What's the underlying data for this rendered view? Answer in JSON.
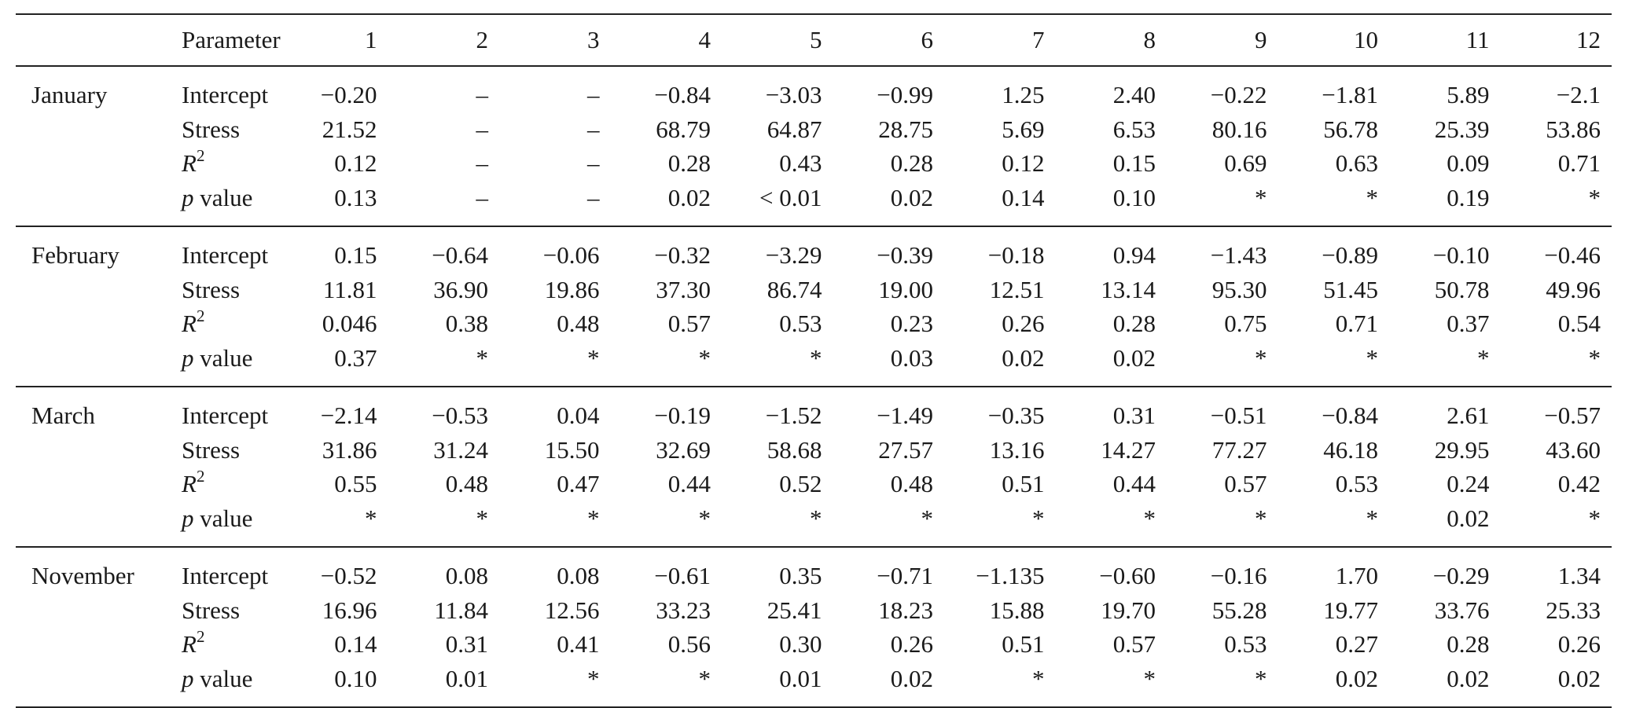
{
  "header": {
    "parameter_label": "Parameter",
    "columns": [
      "1",
      "2",
      "3",
      "4",
      "5",
      "6",
      "7",
      "8",
      "9",
      "10",
      "11",
      "12"
    ]
  },
  "parameter_names": {
    "intercept": "Intercept",
    "stress": "Stress",
    "r2_base": "R",
    "r2_exp": "2",
    "p_italic": "p",
    "p_rest": " value"
  },
  "groups": [
    {
      "month": "January",
      "intercept": [
        "−0.20",
        "–",
        "–",
        "−0.84",
        "−3.03",
        "−0.99",
        "1.25",
        "2.40",
        "−0.22",
        "−1.81",
        "5.89",
        "−2.1"
      ],
      "stress": [
        "21.52",
        "–",
        "–",
        "68.79",
        "64.87",
        "28.75",
        "5.69",
        "6.53",
        "80.16",
        "56.78",
        "25.39",
        "53.86"
      ],
      "r2": [
        "0.12",
        "–",
        "–",
        "0.28",
        "0.43",
        "0.28",
        "0.12",
        "0.15",
        "0.69",
        "0.63",
        "0.09",
        "0.71"
      ],
      "p": [
        "0.13",
        "–",
        "–",
        "0.02",
        "< 0.01",
        "0.02",
        "0.14",
        "0.10",
        "*",
        "*",
        "0.19",
        "*"
      ]
    },
    {
      "month": "February",
      "intercept": [
        "0.15",
        "−0.64",
        "−0.06",
        "−0.32",
        "−3.29",
        "−0.39",
        "−0.18",
        "0.94",
        "−1.43",
        "−0.89",
        "−0.10",
        "−0.46"
      ],
      "stress": [
        "11.81",
        "36.90",
        "19.86",
        "37.30",
        "86.74",
        "19.00",
        "12.51",
        "13.14",
        "95.30",
        "51.45",
        "50.78",
        "49.96"
      ],
      "r2": [
        "0.046",
        "0.38",
        "0.48",
        "0.57",
        "0.53",
        "0.23",
        "0.26",
        "0.28",
        "0.75",
        "0.71",
        "0.37",
        "0.54"
      ],
      "p": [
        "0.37",
        "*",
        "*",
        "*",
        "*",
        "0.03",
        "0.02",
        "0.02",
        "*",
        "*",
        "*",
        "*"
      ]
    },
    {
      "month": "March",
      "intercept": [
        "−2.14",
        "−0.53",
        "0.04",
        "−0.19",
        "−1.52",
        "−1.49",
        "−0.35",
        "0.31",
        "−0.51",
        "−0.84",
        "2.61",
        "−0.57"
      ],
      "stress": [
        "31.86",
        "31.24",
        "15.50",
        "32.69",
        "58.68",
        "27.57",
        "13.16",
        "14.27",
        "77.27",
        "46.18",
        "29.95",
        "43.60"
      ],
      "r2": [
        "0.55",
        "0.48",
        "0.47",
        "0.44",
        "0.52",
        "0.48",
        "0.51",
        "0.44",
        "0.57",
        "0.53",
        "0.24",
        "0.42"
      ],
      "p": [
        "*",
        "*",
        "*",
        "*",
        "*",
        "*",
        "*",
        "*",
        "*",
        "*",
        "0.02",
        "*"
      ]
    },
    {
      "month": "November",
      "intercept": [
        "−0.52",
        "0.08",
        "0.08",
        "−0.61",
        "0.35",
        "−0.71",
        "−1.135",
        "−0.60",
        "−0.16",
        "1.70",
        "−0.29",
        "1.34"
      ],
      "stress": [
        "16.96",
        "11.84",
        "12.56",
        "33.23",
        "25.41",
        "18.23",
        "15.88",
        "19.70",
        "55.28",
        "19.77",
        "33.76",
        "25.33"
      ],
      "r2": [
        "0.14",
        "0.31",
        "0.41",
        "0.56",
        "0.30",
        "0.26",
        "0.51",
        "0.57",
        "0.53",
        "0.27",
        "0.28",
        "0.26"
      ],
      "p": [
        "0.10",
        "0.01",
        "*",
        "*",
        "0.01",
        "0.02",
        "*",
        "*",
        "*",
        "0.02",
        "0.02",
        "0.02"
      ]
    }
  ]
}
